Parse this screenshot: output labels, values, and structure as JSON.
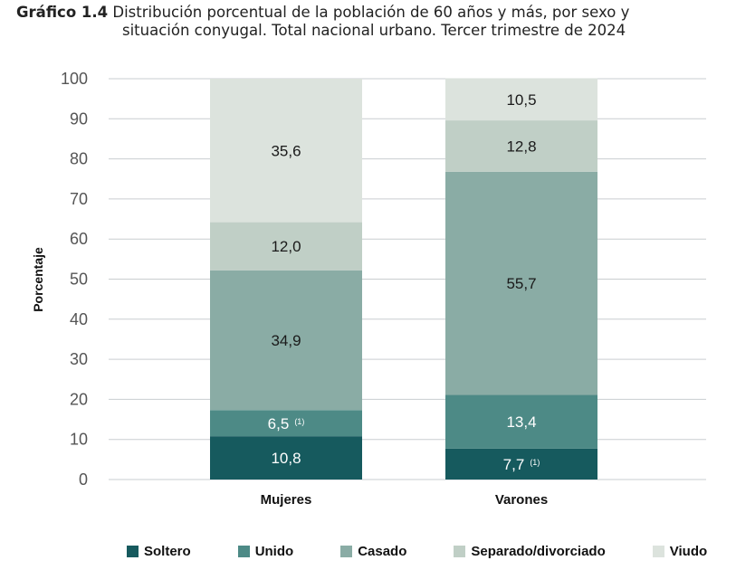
{
  "title": {
    "label": "Gráfico 1.4",
    "line1": "Distribución porcentual de la población de 60 años y más, por sexo y",
    "line2": "situación conyugal. Total nacional urbano. Tercer trimestre de 2024"
  },
  "chart_data": {
    "type": "bar",
    "stacked": true,
    "categories": [
      "Mujeres",
      "Varones"
    ],
    "ylabel": "Porcentaje",
    "ylim": [
      0,
      100
    ],
    "yticks": [
      "0",
      "10",
      "20",
      "30",
      "40",
      "50",
      "60",
      "70",
      "80",
      "90",
      "100"
    ],
    "grid": true,
    "legend_position": "bottom",
    "series": [
      {
        "name": "Soltero",
        "values": [
          10.8,
          7.7
        ],
        "labels": [
          "10,8",
          "7,7"
        ],
        "notes": [
          "",
          "(1)"
        ],
        "color": "#165a5e",
        "label_color": "#ffffff"
      },
      {
        "name": "Unido",
        "values": [
          6.5,
          13.4
        ],
        "labels": [
          "6,5",
          "13,4"
        ],
        "notes": [
          "(1)",
          ""
        ],
        "color": "#4d8a86",
        "label_color": "#ffffff"
      },
      {
        "name": "Casado",
        "values": [
          34.9,
          55.7
        ],
        "labels": [
          "34,9",
          "55,7"
        ],
        "notes": [
          "",
          ""
        ],
        "color": "#8aaca5",
        "label_color": "#1a1a1a"
      },
      {
        "name": "Separado/divorciado",
        "values": [
          12.0,
          12.8
        ],
        "labels": [
          "12,0",
          "12,8"
        ],
        "notes": [
          "",
          ""
        ],
        "color": "#c0cfc6",
        "label_color": "#1a1a1a"
      },
      {
        "name": "Viudo",
        "values": [
          35.6,
          10.5
        ],
        "labels": [
          "35,6",
          "10,5"
        ],
        "notes": [
          "",
          ""
        ],
        "color": "#dce3dd",
        "label_color": "#1a1a1a"
      }
    ]
  }
}
